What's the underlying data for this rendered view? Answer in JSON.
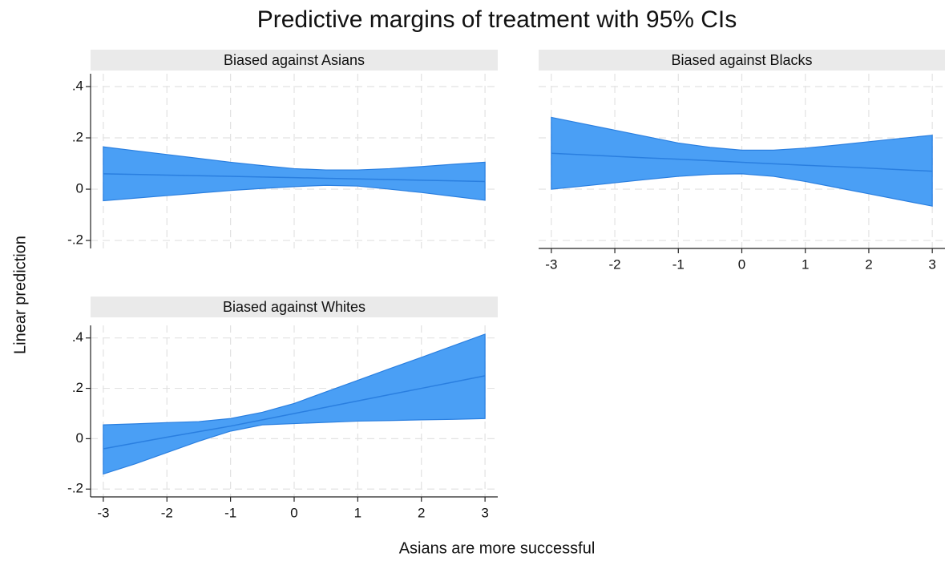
{
  "title": "Predictive margins of treatment with 95% CIs",
  "x_label": "Asians are more successful",
  "y_label": "Linear prediction",
  "chart_data": [
    {
      "type": "line",
      "title": "Biased against Asians",
      "x": [
        -3,
        -2.5,
        -2,
        -1.5,
        -1,
        -0.5,
        0,
        0.5,
        1,
        1.5,
        2,
        2.5,
        3
      ],
      "values": [
        0.06,
        0.0575,
        0.055,
        0.0525,
        0.05,
        0.0475,
        0.045,
        0.0425,
        0.04,
        0.0375,
        0.035,
        0.0325,
        0.03
      ],
      "ci_upper": [
        0.165,
        0.15,
        0.135,
        0.12,
        0.105,
        0.092,
        0.08,
        0.075,
        0.075,
        0.08,
        0.088,
        0.097,
        0.105
      ],
      "ci_lower": [
        -0.045,
        -0.035,
        -0.025,
        -0.015,
        -0.005,
        0.003,
        0.01,
        0.015,
        0.012,
        0.0,
        -0.013,
        -0.028,
        -0.043
      ],
      "color": "#4a9ff5",
      "line_color": "#2a7fe0",
      "xlim": [
        -3.2,
        3.2
      ],
      "ylim": [
        -0.231,
        0.45
      ],
      "xticks": [
        -3,
        -2,
        -1,
        0,
        1,
        2,
        3
      ],
      "yticks": [
        {
          "value": -0.2,
          "label": "-.2"
        },
        0,
        {
          "value": 0.2,
          "label": ".2"
        },
        {
          "value": 0.4,
          "label": ".4"
        }
      ],
      "grid": true,
      "show_x_axis": false,
      "show_y_axis": true
    },
    {
      "type": "line",
      "title": "Biased against Blacks",
      "x": [
        -3,
        -2.5,
        -2,
        -1.5,
        -1,
        -0.5,
        0,
        0.5,
        1,
        1.5,
        2,
        2.5,
        3
      ],
      "values": [
        0.14,
        0.134,
        0.128,
        0.122,
        0.117,
        0.111,
        0.105,
        0.099,
        0.093,
        0.088,
        0.082,
        0.076,
        0.07
      ],
      "ci_upper": [
        0.28,
        0.255,
        0.23,
        0.205,
        0.18,
        0.163,
        0.152,
        0.152,
        0.16,
        0.172,
        0.185,
        0.198,
        0.21
      ],
      "ci_lower": [
        0.0,
        0.012,
        0.025,
        0.038,
        0.05,
        0.058,
        0.06,
        0.05,
        0.03,
        0.006,
        -0.018,
        -0.042,
        -0.066
      ],
      "color": "#4a9ff5",
      "line_color": "#2a7fe0",
      "xlim": [
        -3.2,
        3.2
      ],
      "ylim": [
        -0.231,
        0.45
      ],
      "xticks": [
        -3,
        -2,
        -1,
        0,
        1,
        2,
        3
      ],
      "yticks": [
        {
          "value": -0.2,
          "label": "-.2"
        },
        0,
        {
          "value": 0.2,
          "label": ".2"
        },
        {
          "value": 0.4,
          "label": ".4"
        }
      ],
      "grid": true,
      "show_x_axis": true,
      "show_y_axis": false
    },
    {
      "type": "line",
      "title": "Biased against Whites",
      "x": [
        -3,
        -2.5,
        -2,
        -1.5,
        -1,
        -0.5,
        0,
        0.5,
        1,
        1.5,
        2,
        2.5,
        3
      ],
      "values": [
        -0.04,
        -0.017,
        0.006,
        0.028,
        0.05,
        0.075,
        0.1,
        0.125,
        0.15,
        0.175,
        0.2,
        0.225,
        0.25
      ],
      "ci_upper": [
        0.055,
        0.059,
        0.064,
        0.068,
        0.08,
        0.105,
        0.14,
        0.186,
        0.232,
        0.278,
        0.323,
        0.369,
        0.415
      ],
      "ci_lower": [
        -0.14,
        -0.1,
        -0.055,
        -0.01,
        0.03,
        0.055,
        0.06,
        0.065,
        0.07,
        0.072,
        0.075,
        0.077,
        0.08
      ],
      "color": "#4a9ff5",
      "line_color": "#2a7fe0",
      "xlim": [
        -3.2,
        3.2
      ],
      "ylim": [
        -0.231,
        0.45
      ],
      "xticks": [
        -3,
        -2,
        -1,
        0,
        1,
        2,
        3
      ],
      "yticks": [
        {
          "value": -0.2,
          "label": "-.2"
        },
        0,
        {
          "value": 0.2,
          "label": ".2"
        },
        {
          "value": 0.4,
          "label": ".4"
        }
      ],
      "grid": true,
      "show_x_axis": true,
      "show_y_axis": true
    }
  ]
}
